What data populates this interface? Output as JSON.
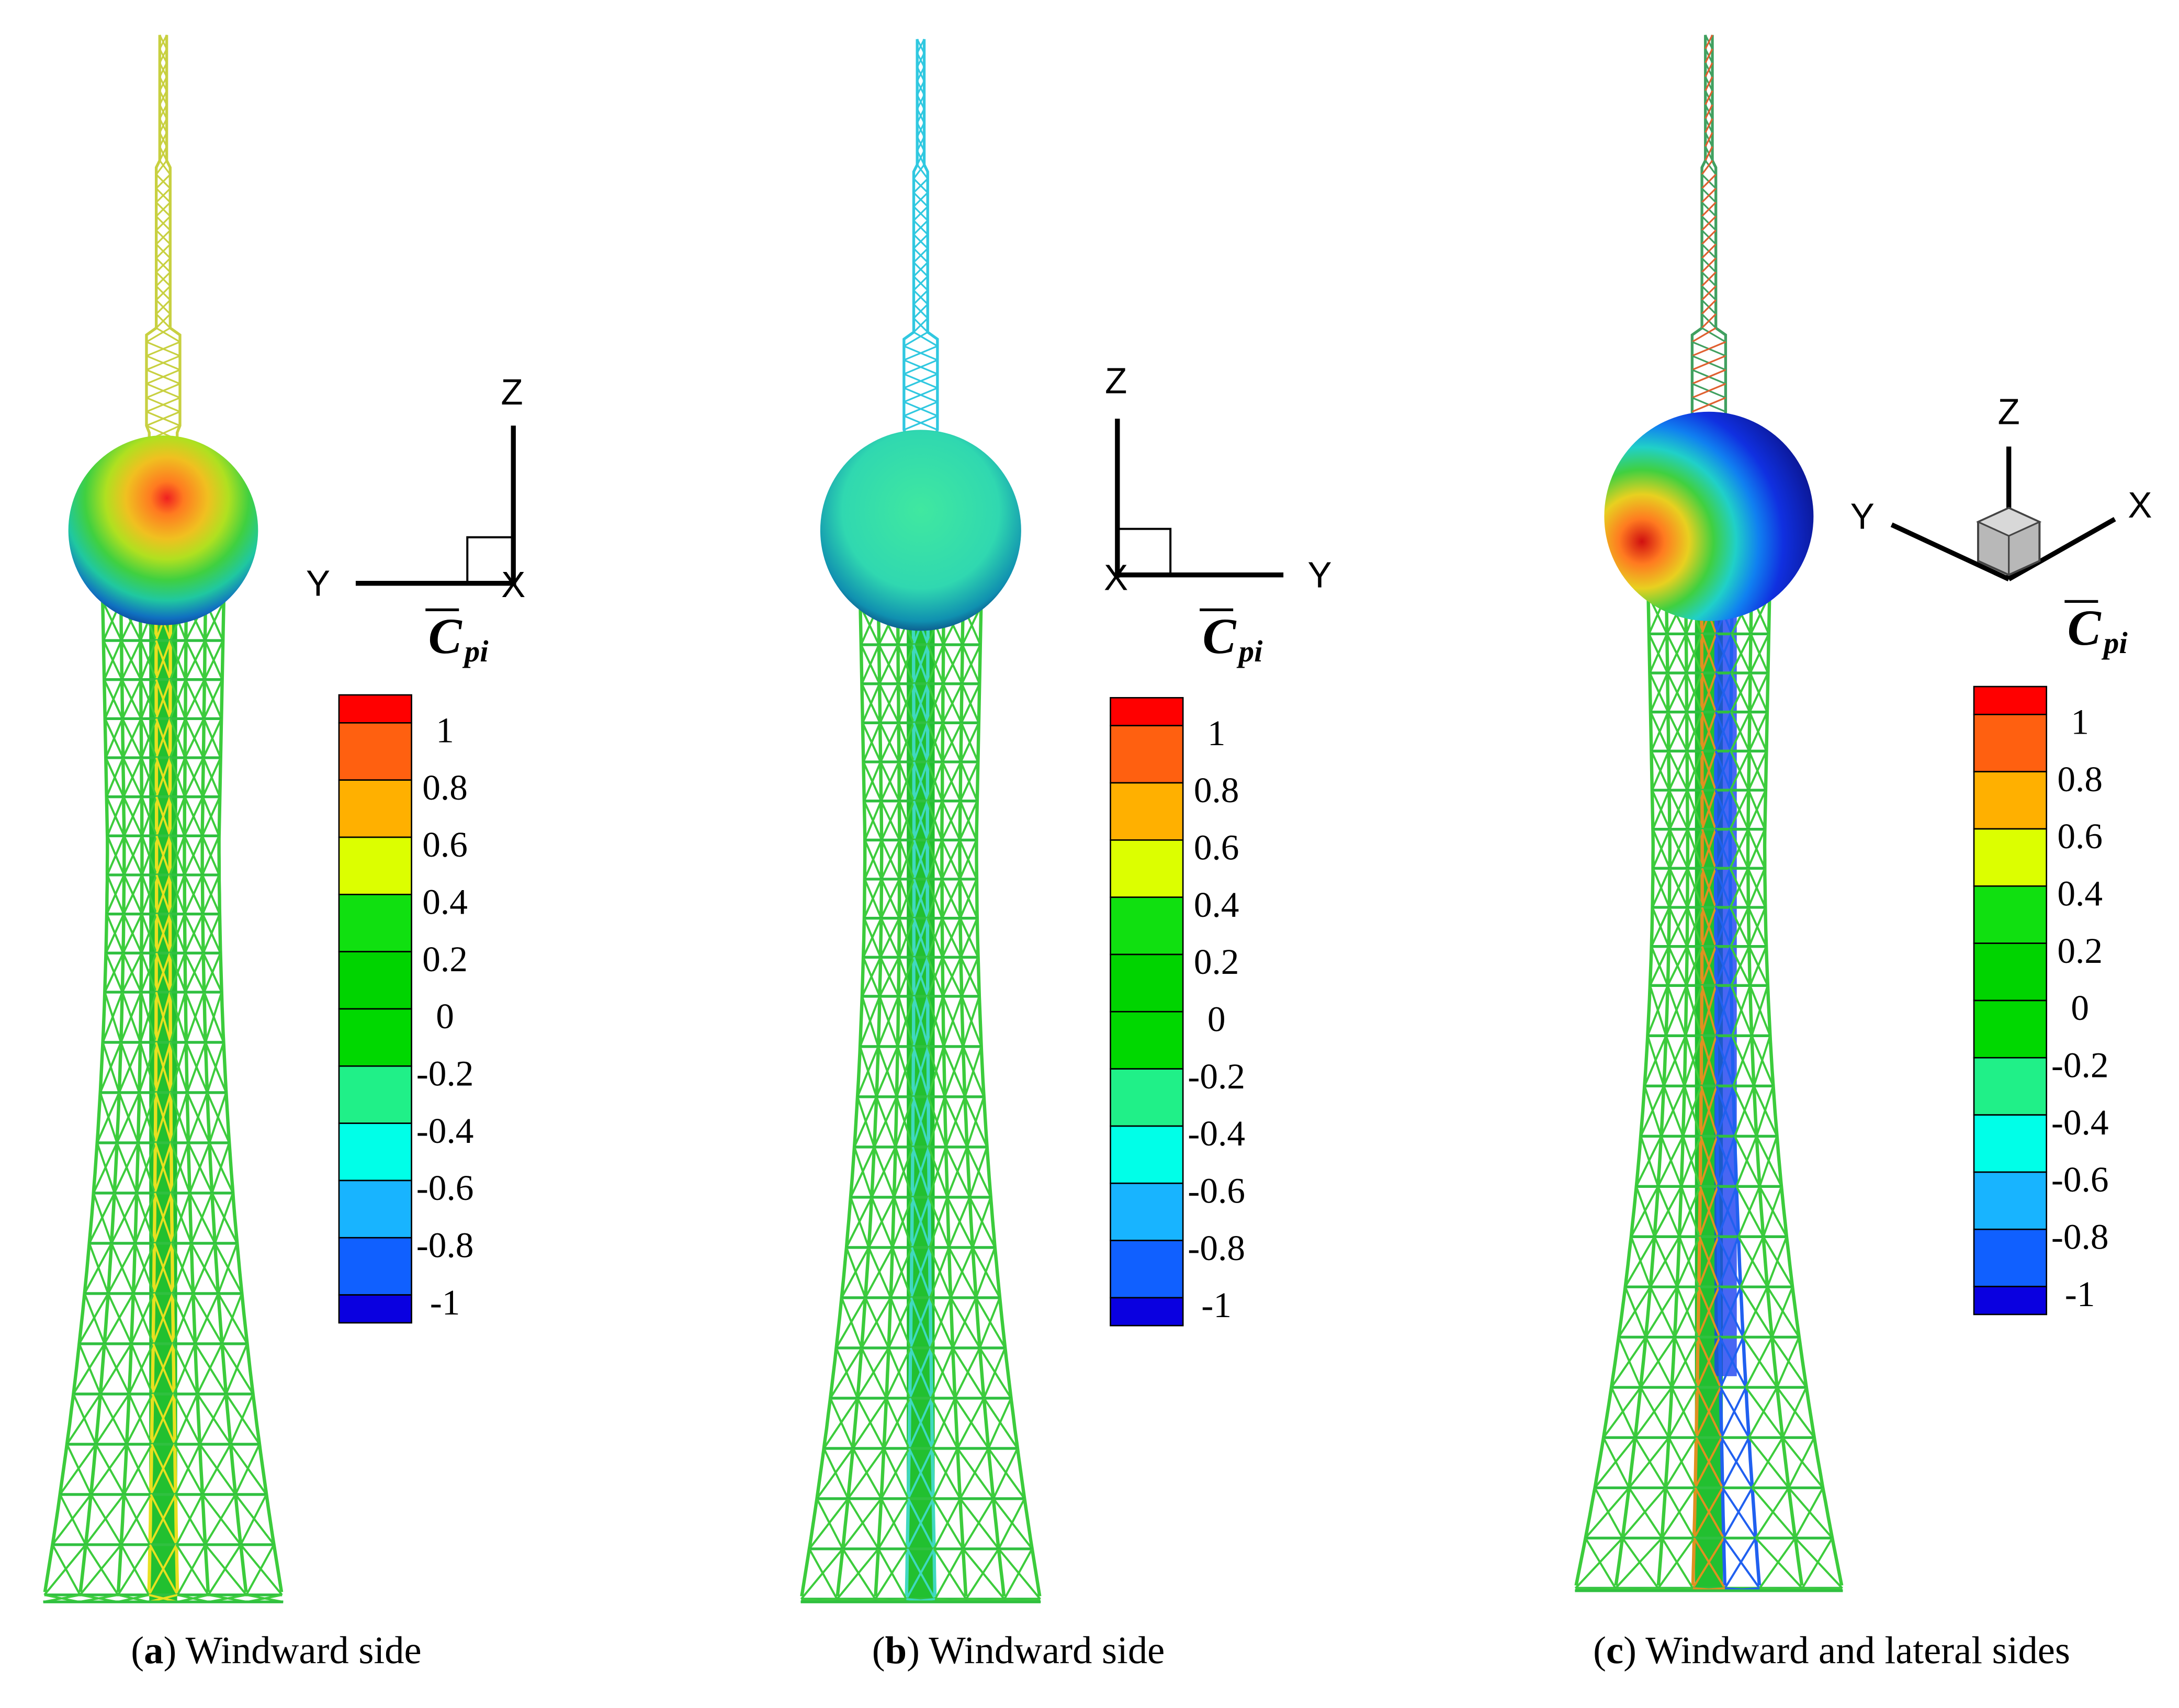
{
  "panels": [
    {
      "caption": [
        "(",
        "a",
        ") Windward side"
      ],
      "axes": {
        "z": "Z",
        "y": "Y",
        "x": "X"
      },
      "colorbar": {
        "title": {
          "symbol": "C",
          "subscript": "pi"
        },
        "levels": [
          1,
          0.8,
          0.6,
          0.4,
          0.2,
          0,
          -0.2,
          -0.4,
          -0.6,
          -0.8,
          -1
        ],
        "colors": [
          "#ff0000",
          "#ff6010",
          "#ffb000",
          "#dcff00",
          "#10e010",
          "#00d400",
          "#00d800",
          "#20f088",
          "#00ffe8",
          "#18b4ff",
          "#1060ff",
          "#0a00e0"
        ]
      }
    },
    {
      "caption": [
        "(",
        "b",
        ") Windward side"
      ],
      "axes": {
        "z": "Z",
        "y": "Y",
        "x": "X"
      },
      "colorbar": {
        "title": {
          "symbol": "C",
          "subscript": "pi"
        },
        "levels": [
          1,
          0.8,
          0.6,
          0.4,
          0.2,
          0,
          -0.2,
          -0.4,
          -0.6,
          -0.8,
          -1
        ],
        "colors": [
          "#ff0000",
          "#ff6010",
          "#ffb000",
          "#dcff00",
          "#10e010",
          "#00d400",
          "#00d800",
          "#20f088",
          "#00ffe8",
          "#18b4ff",
          "#1060ff",
          "#0a00e0"
        ]
      }
    },
    {
      "caption": [
        "(",
        "c",
        ") Windward and lateral sides"
      ],
      "axes": {
        "z": "Z",
        "y": "Y",
        "x": "X"
      },
      "colorbar": {
        "title": {
          "symbol": "C",
          "subscript": "pi"
        },
        "levels": [
          1,
          0.8,
          0.6,
          0.4,
          0.2,
          0,
          -0.2,
          -0.4,
          -0.6,
          -0.8,
          -1
        ],
        "colors": [
          "#ff0000",
          "#ff6010",
          "#ffb000",
          "#dcff00",
          "#10e010",
          "#00d400",
          "#00d800",
          "#20f088",
          "#00ffe8",
          "#18b4ff",
          "#1060ff",
          "#0a00e0"
        ]
      }
    }
  ]
}
